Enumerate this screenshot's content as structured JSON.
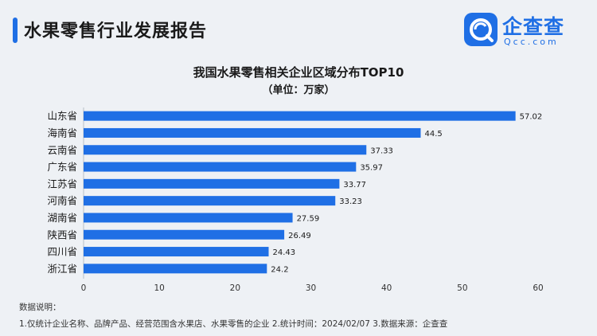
{
  "header": {
    "title": "水果零售行业发展报告"
  },
  "logo": {
    "name": "企查查",
    "sub": "Qcc.com"
  },
  "chart_data": {
    "type": "bar",
    "orientation": "horizontal",
    "title": "我国水果零售相关企业区域分布TOP10",
    "subtitle": "（单位：万家）",
    "categories": [
      "山东省",
      "海南省",
      "云南省",
      "广东省",
      "江苏省",
      "河南省",
      "湖南省",
      "陕西省",
      "四川省",
      "浙江省"
    ],
    "values": [
      57.02,
      44.5,
      37.33,
      35.97,
      33.77,
      33.23,
      27.59,
      26.49,
      24.43,
      24.2
    ],
    "value_labels": [
      "57.02",
      "44.5",
      "37.33",
      "35.97",
      "33.77",
      "33.23",
      "27.59",
      "26.49",
      "24.43",
      "24.2"
    ],
    "xlim": [
      0,
      60
    ],
    "xticks": [
      "0",
      "10",
      "20",
      "30",
      "40",
      "50",
      "60"
    ],
    "bar_color": "#1f6fe5",
    "grid": false,
    "legend": "none"
  },
  "notes": {
    "title": "数据说明：",
    "line": "1.仅统计企业名称、品牌产品、经营范围含水果店、水果零售的企业   2.统计时间：2024/02/07   3.数据来源：企查查"
  },
  "colors": {
    "accent": "#1f6fe5",
    "background": "#eef1f5"
  }
}
